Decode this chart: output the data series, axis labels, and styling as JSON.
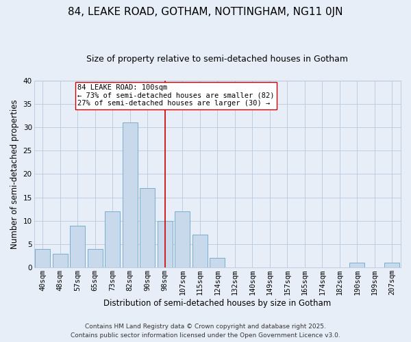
{
  "title": "84, LEAKE ROAD, GOTHAM, NOTTINGHAM, NG11 0JN",
  "subtitle": "Size of property relative to semi-detached houses in Gotham",
  "xlabel": "Distribution of semi-detached houses by size in Gotham",
  "ylabel": "Number of semi-detached properties",
  "bar_labels": [
    "40sqm",
    "48sqm",
    "57sqm",
    "65sqm",
    "73sqm",
    "82sqm",
    "90sqm",
    "98sqm",
    "107sqm",
    "115sqm",
    "124sqm",
    "132sqm",
    "140sqm",
    "149sqm",
    "157sqm",
    "165sqm",
    "174sqm",
    "182sqm",
    "190sqm",
    "199sqm",
    "207sqm"
  ],
  "bar_heights": [
    4,
    3,
    9,
    4,
    12,
    31,
    17,
    10,
    12,
    7,
    2,
    0,
    0,
    0,
    0,
    0,
    0,
    0,
    1,
    0,
    1
  ],
  "bar_color": "#c9d9ec",
  "bar_edgecolor": "#7aadcf",
  "vline_x_index": 7,
  "vline_color": "#cc0000",
  "annotation_title": "84 LEAKE ROAD: 100sqm",
  "annotation_line1": "← 73% of semi-detached houses are smaller (82)",
  "annotation_line2": "27% of semi-detached houses are larger (30) →",
  "annotation_box_facecolor": "#ffffff",
  "annotation_box_edgecolor": "#cc0000",
  "ylim": [
    0,
    40
  ],
  "yticks": [
    0,
    5,
    10,
    15,
    20,
    25,
    30,
    35,
    40
  ],
  "footer_line1": "Contains HM Land Registry data © Crown copyright and database right 2025.",
  "footer_line2": "Contains public sector information licensed under the Open Government Licence v3.0.",
  "bg_color": "#e8eef8",
  "plot_bg_color": "#e8eef8",
  "title_fontsize": 11,
  "subtitle_fontsize": 9,
  "axis_label_fontsize": 8.5,
  "tick_fontsize": 7.5,
  "annotation_fontsize": 7.5,
  "footer_fontsize": 6.5
}
